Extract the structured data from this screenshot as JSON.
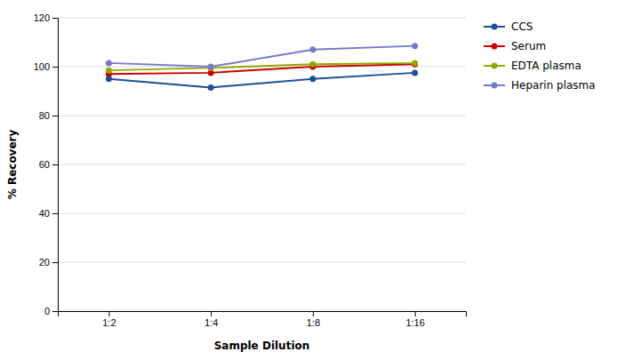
{
  "chart_data": {
    "type": "line",
    "categories": [
      "1:2",
      "1:4",
      "1:8",
      "1:16"
    ],
    "series": [
      {
        "name": "CCS",
        "color": "#1f4e99",
        "values": [
          95,
          91.5,
          95,
          97.5
        ]
      },
      {
        "name": "Serum",
        "color": "#cc0000",
        "values": [
          97,
          97.5,
          100,
          101
        ]
      },
      {
        "name": "EDTA plasma",
        "color": "#92a800",
        "values": [
          98.5,
          99.5,
          101,
          101.5
        ]
      },
      {
        "name": "Heparin plasma",
        "color": "#7878c8",
        "values": [
          101.5,
          100,
          107,
          108.5
        ]
      }
    ],
    "xlabel": "Sample Dilution",
    "ylabel": "% Recovery",
    "ylim": [
      0,
      120
    ],
    "yticks": [
      0,
      20,
      40,
      60,
      80,
      100,
      120
    ],
    "grid": true,
    "legend": "right",
    "marker": "circle"
  }
}
